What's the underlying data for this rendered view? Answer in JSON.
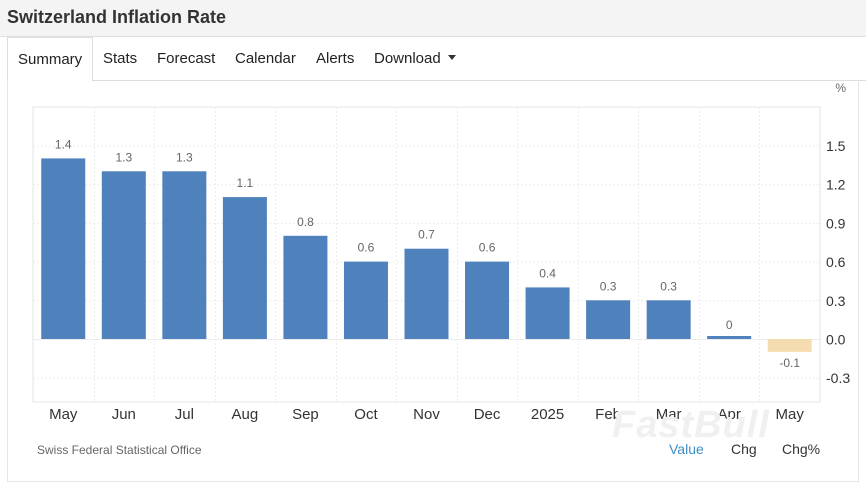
{
  "page": {
    "title": "Switzerland Inflation Rate"
  },
  "tabs": [
    {
      "label": "Summary",
      "active": true
    },
    {
      "label": "Stats"
    },
    {
      "label": "Forecast"
    },
    {
      "label": "Calendar"
    },
    {
      "label": "Alerts"
    },
    {
      "label": "Download",
      "has_dropdown": true
    }
  ],
  "footer": {
    "source": "Swiss Federal Statistical Office",
    "watermark": "FastBull",
    "modes": [
      {
        "label": "Value",
        "active": true
      },
      {
        "label": "Chg"
      },
      {
        "label": "Chg%"
      }
    ]
  },
  "colors": {
    "positive_bar": "#4f81bd",
    "negative_bar": "#f5dcb0",
    "active_link": "#3d8fc6"
  },
  "chart_data": {
    "type": "bar",
    "categories": [
      "May",
      "Jun",
      "Jul",
      "Aug",
      "Sep",
      "Oct",
      "Nov",
      "Dec",
      "2025",
      "Feb",
      "Mar",
      "Apr",
      "May"
    ],
    "values": [
      1.4,
      1.3,
      1.3,
      1.1,
      0.8,
      0.6,
      0.7,
      0.6,
      0.4,
      0.3,
      0.3,
      0,
      -0.1
    ],
    "data_labels": [
      "1.4",
      "1.3",
      "1.3",
      "1.1",
      "0.8",
      "0.6",
      "0.7",
      "0.6",
      "0.4",
      "0.3",
      "0.3",
      "0",
      "-0.1"
    ],
    "y_unit": "%",
    "y_axis_position": "right",
    "yticks": [
      1.5,
      1.2,
      0.9,
      0.6,
      0.3,
      0.0,
      -0.3
    ],
    "ytick_labels": [
      "1.5",
      "1.2",
      "0.9",
      "0.6",
      "0.3",
      "0.0",
      "-0.3"
    ],
    "ylim": [
      -0.5,
      1.8
    ],
    "grid": true,
    "legend": "none"
  }
}
